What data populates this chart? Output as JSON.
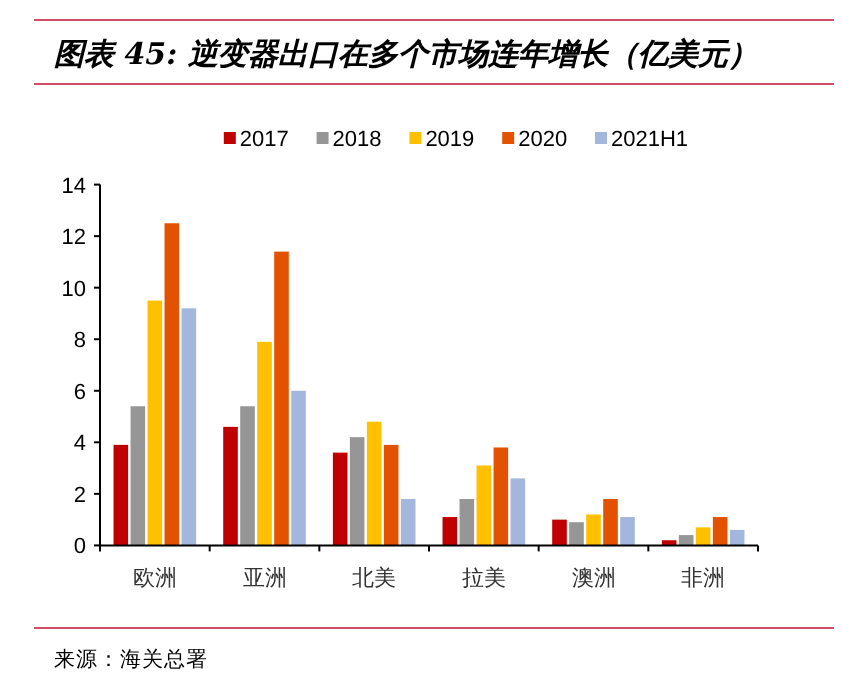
{
  "chart_data": {
    "type": "bar",
    "title": "图表 45: 逆变器出口在多个市场连年增长（亿美元）",
    "categories": [
      "欧洲",
      "亚洲",
      "北美",
      "拉美",
      "澳洲",
      "非洲"
    ],
    "series": [
      {
        "name": "2017",
        "color": "#c00000",
        "values": [
          3.9,
          4.6,
          3.6,
          1.1,
          1.0,
          0.2
        ]
      },
      {
        "name": "2018",
        "color": "#969696",
        "values": [
          5.4,
          5.4,
          4.2,
          1.8,
          0.9,
          0.4
        ]
      },
      {
        "name": "2019",
        "color": "#ffc000",
        "values": [
          9.5,
          7.9,
          4.8,
          3.1,
          1.2,
          0.7
        ]
      },
      {
        "name": "2020",
        "color": "#e35200",
        "values": [
          12.5,
          11.4,
          3.9,
          3.8,
          1.8,
          1.1
        ]
      },
      {
        "name": "2021H1",
        "color": "#a3b6dd",
        "values": [
          9.2,
          6.0,
          1.8,
          2.6,
          1.1,
          0.6
        ]
      }
    ],
    "ylim": [
      0,
      14
    ],
    "yticks": [
      0,
      2,
      4,
      6,
      8,
      10,
      12,
      14
    ],
    "legend": "top",
    "grid": false,
    "annotations": [
      "来源：海关总署"
    ]
  }
}
